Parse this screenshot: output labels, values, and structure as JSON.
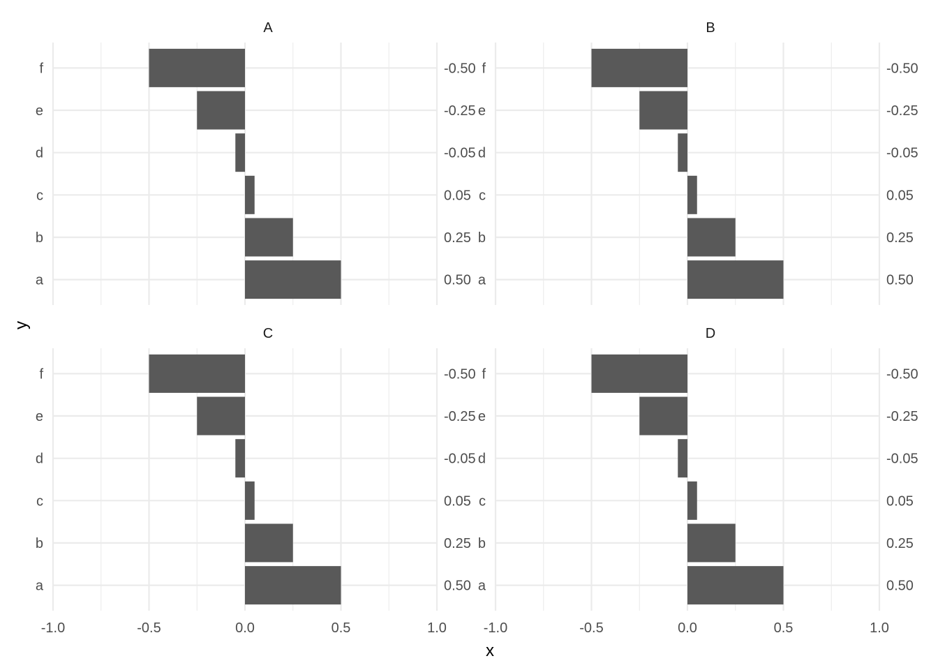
{
  "chart_data": {
    "type": "bar",
    "orientation": "horizontal",
    "xlabel": "x",
    "ylabel": "y",
    "xlim": [
      -1.0,
      1.0
    ],
    "x_ticks": [
      -1.0,
      -0.5,
      0.0,
      0.5,
      1.0
    ],
    "x_tick_labels": [
      "-1.0",
      "-0.5",
      "0.0",
      "0.5",
      "1.0"
    ],
    "categories": [
      "a",
      "b",
      "c",
      "d",
      "e",
      "f"
    ],
    "right_axis_labels": [
      "0.50",
      "0.25",
      "0.05",
      "-0.05",
      "-0.25",
      "-0.50"
    ],
    "grid": true,
    "facets": [
      {
        "panel": "A",
        "values": [
          0.5,
          0.25,
          0.05,
          -0.05,
          -0.25,
          -0.5
        ]
      },
      {
        "panel": "B",
        "values": [
          0.5,
          0.25,
          0.05,
          -0.05,
          -0.25,
          -0.5
        ]
      },
      {
        "panel": "C",
        "values": [
          0.5,
          0.25,
          0.05,
          -0.05,
          -0.25,
          -0.5
        ]
      },
      {
        "panel": "D",
        "values": [
          0.5,
          0.25,
          0.05,
          -0.05,
          -0.25,
          -0.5
        ]
      }
    ],
    "colors": {
      "bar": "#595959",
      "grid": "#ebebeb",
      "text": "#4d4d4d",
      "strip_text": "#1a1a1a"
    }
  }
}
